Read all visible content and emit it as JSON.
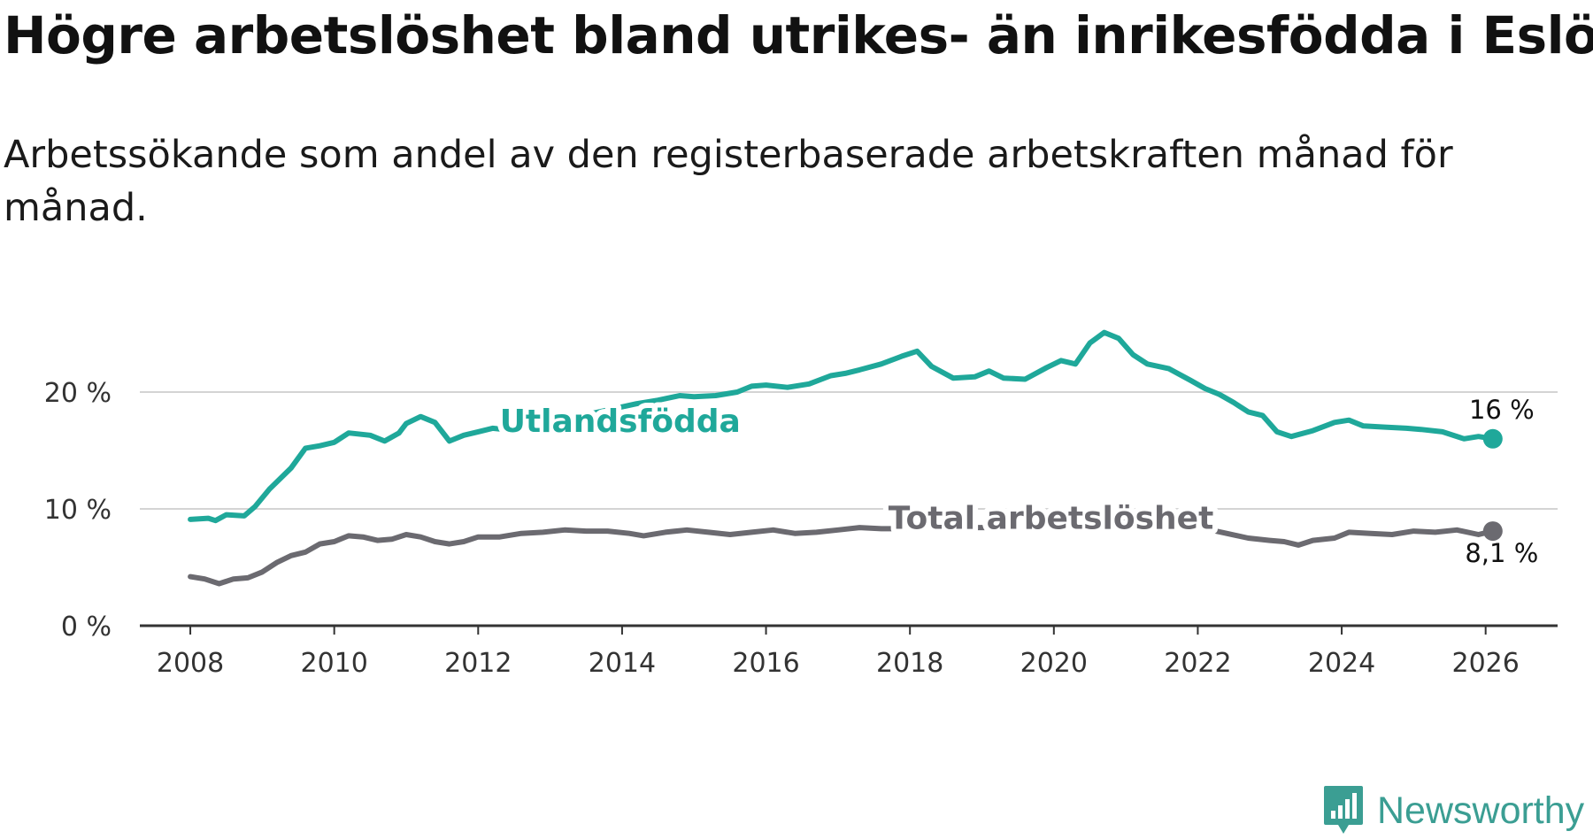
{
  "header": {
    "title": "Högre arbetslöshet bland utrikes- än inrikesfödda i Eslöv",
    "subtitle": "Arbetssökande som andel av den registerbaserade arbetskraften månad för månad."
  },
  "brand": {
    "name": "Newsworthy",
    "color": "#3b9e93"
  },
  "chart_data": {
    "type": "line",
    "title": "Högre arbetslöshet bland utrikes- än inrikesfödda i Eslöv",
    "subtitle": "Arbetssökande som andel av den registerbaserade arbetskraften månad för månad.",
    "xlabel": "",
    "ylabel": "",
    "x_range": [
      2007.2,
      2027.0
    ],
    "ylim": [
      0,
      20
    ],
    "y_ticks": [
      0,
      10,
      20
    ],
    "y_tick_labels": [
      "0 %",
      "10 %",
      "20 %"
    ],
    "x_ticks": [
      2008,
      2010,
      2012,
      2014,
      2016,
      2018,
      2020,
      2022,
      2024,
      2026
    ],
    "x_tick_labels": [
      "2008",
      "2010",
      "2012",
      "2014",
      "2016",
      "2018",
      "2020",
      "2022",
      "2024",
      "2026"
    ],
    "grid": true,
    "series": [
      {
        "name": "Utlandsfödda",
        "color": "#1fa89a",
        "end_label": "16 %",
        "points": [
          [
            2008.0,
            9.1
          ],
          [
            2008.25,
            9.2
          ],
          [
            2008.35,
            9.0
          ],
          [
            2008.5,
            9.5
          ],
          [
            2008.75,
            9.4
          ],
          [
            2008.9,
            10.2
          ],
          [
            2009.1,
            11.7
          ],
          [
            2009.4,
            13.5
          ],
          [
            2009.6,
            15.2
          ],
          [
            2009.8,
            15.4
          ],
          [
            2010.0,
            15.7
          ],
          [
            2010.2,
            16.5
          ],
          [
            2010.5,
            16.3
          ],
          [
            2010.7,
            15.8
          ],
          [
            2010.9,
            16.5
          ],
          [
            2011.0,
            17.3
          ],
          [
            2011.2,
            17.9
          ],
          [
            2011.4,
            17.4
          ],
          [
            2011.6,
            15.8
          ],
          [
            2011.8,
            16.3
          ],
          [
            2012.0,
            16.6
          ],
          [
            2012.2,
            16.9
          ],
          [
            2012.35,
            16.8
          ],
          [
            2012.5,
            17.0
          ],
          [
            2012.75,
            17.2
          ],
          [
            2013.0,
            17.6
          ],
          [
            2013.3,
            18.0
          ],
          [
            2013.6,
            18.2
          ],
          [
            2013.9,
            18.6
          ],
          [
            2014.2,
            19.0
          ],
          [
            2014.5,
            19.3
          ],
          [
            2014.8,
            19.7
          ],
          [
            2015.0,
            19.6
          ],
          [
            2015.3,
            19.7
          ],
          [
            2015.6,
            20.0
          ],
          [
            2015.8,
            20.5
          ],
          [
            2016.0,
            20.6
          ],
          [
            2016.3,
            20.4
          ],
          [
            2016.6,
            20.7
          ],
          [
            2016.9,
            21.4
          ],
          [
            2017.1,
            21.6
          ],
          [
            2017.3,
            21.9
          ],
          [
            2017.6,
            22.4
          ],
          [
            2017.9,
            23.1
          ],
          [
            2018.1,
            23.5
          ],
          [
            2018.3,
            22.2
          ],
          [
            2018.6,
            21.2
          ],
          [
            2018.9,
            21.3
          ],
          [
            2019.1,
            21.8
          ],
          [
            2019.3,
            21.2
          ],
          [
            2019.6,
            21.1
          ],
          [
            2019.9,
            22.1
          ],
          [
            2020.1,
            22.7
          ],
          [
            2020.3,
            22.4
          ],
          [
            2020.5,
            24.2
          ],
          [
            2020.7,
            25.1
          ],
          [
            2020.9,
            24.6
          ],
          [
            2021.1,
            23.2
          ],
          [
            2021.3,
            22.4
          ],
          [
            2021.6,
            22.0
          ],
          [
            2021.9,
            21.0
          ],
          [
            2022.1,
            20.3
          ],
          [
            2022.3,
            19.8
          ],
          [
            2022.5,
            19.1
          ],
          [
            2022.7,
            18.3
          ],
          [
            2022.9,
            18.0
          ],
          [
            2023.1,
            16.6
          ],
          [
            2023.3,
            16.2
          ],
          [
            2023.6,
            16.7
          ],
          [
            2023.9,
            17.4
          ],
          [
            2024.1,
            17.6
          ],
          [
            2024.3,
            17.1
          ],
          [
            2024.6,
            17.0
          ],
          [
            2024.9,
            16.9
          ],
          [
            2025.1,
            16.8
          ],
          [
            2025.4,
            16.6
          ],
          [
            2025.7,
            16.0
          ],
          [
            2025.9,
            16.2
          ],
          [
            2026.1,
            16.0
          ]
        ]
      },
      {
        "name": "Total arbetslöshet",
        "color": "#6b6a70",
        "end_label": "8,1 %",
        "points": [
          [
            2008.0,
            4.2
          ],
          [
            2008.2,
            4.0
          ],
          [
            2008.4,
            3.6
          ],
          [
            2008.6,
            4.0
          ],
          [
            2008.8,
            4.1
          ],
          [
            2009.0,
            4.6
          ],
          [
            2009.2,
            5.4
          ],
          [
            2009.4,
            6.0
          ],
          [
            2009.6,
            6.3
          ],
          [
            2009.8,
            7.0
          ],
          [
            2010.0,
            7.2
          ],
          [
            2010.2,
            7.7
          ],
          [
            2010.4,
            7.6
          ],
          [
            2010.6,
            7.3
          ],
          [
            2010.8,
            7.4
          ],
          [
            2011.0,
            7.8
          ],
          [
            2011.2,
            7.6
          ],
          [
            2011.4,
            7.2
          ],
          [
            2011.6,
            7.0
          ],
          [
            2011.8,
            7.2
          ],
          [
            2012.0,
            7.6
          ],
          [
            2012.3,
            7.6
          ],
          [
            2012.6,
            7.9
          ],
          [
            2012.9,
            8.0
          ],
          [
            2013.2,
            8.2
          ],
          [
            2013.5,
            8.1
          ],
          [
            2013.8,
            8.1
          ],
          [
            2014.1,
            7.9
          ],
          [
            2014.3,
            7.7
          ],
          [
            2014.6,
            8.0
          ],
          [
            2014.9,
            8.2
          ],
          [
            2015.2,
            8.0
          ],
          [
            2015.5,
            7.8
          ],
          [
            2015.8,
            8.0
          ],
          [
            2016.1,
            8.2
          ],
          [
            2016.4,
            7.9
          ],
          [
            2016.7,
            8.0
          ],
          [
            2017.0,
            8.2
          ],
          [
            2017.3,
            8.4
          ],
          [
            2017.6,
            8.3
          ],
          [
            2017.9,
            8.3
          ],
          [
            2018.2,
            8.4
          ],
          [
            2018.5,
            8.5
          ],
          [
            2018.8,
            8.4
          ],
          [
            2019.1,
            8.4
          ],
          [
            2019.4,
            8.6
          ],
          [
            2019.7,
            8.7
          ],
          [
            2020.0,
            8.9
          ],
          [
            2020.3,
            9.4
          ],
          [
            2020.6,
            9.6
          ],
          [
            2020.9,
            9.3
          ],
          [
            2021.2,
            9.0
          ],
          [
            2021.5,
            8.9
          ],
          [
            2021.8,
            8.6
          ],
          [
            2022.1,
            8.3
          ],
          [
            2022.4,
            7.9
          ],
          [
            2022.7,
            7.5
          ],
          [
            2023.0,
            7.3
          ],
          [
            2023.2,
            7.2
          ],
          [
            2023.4,
            6.9
          ],
          [
            2023.6,
            7.3
          ],
          [
            2023.9,
            7.5
          ],
          [
            2024.1,
            8.0
          ],
          [
            2024.4,
            7.9
          ],
          [
            2024.7,
            7.8
          ],
          [
            2025.0,
            8.1
          ],
          [
            2025.3,
            8.0
          ],
          [
            2025.6,
            8.2
          ],
          [
            2025.9,
            7.8
          ],
          [
            2026.1,
            8.1
          ]
        ]
      }
    ],
    "series_labels": [
      {
        "text": "Utlandsfödda",
        "x": 2012.3,
        "y": 17.5,
        "series": 0
      },
      {
        "text": "Total arbetslöshet",
        "x": 2017.7,
        "y": 9.2,
        "series": 1
      }
    ]
  }
}
